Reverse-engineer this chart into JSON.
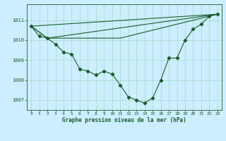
{
  "title": "Graphe pression niveau de la mer (hPa)",
  "bg_color": "#cceeff",
  "grid_color": "#aaddcc",
  "line_color": "#1a5c2a",
  "marker_color": "#1a5c2a",
  "xlim": [
    -0.5,
    23.5
  ],
  "ylim": [
    1006.5,
    1011.8
  ],
  "yticks": [
    1007,
    1008,
    1009,
    1010,
    1011
  ],
  "xticks": [
    0,
    1,
    2,
    3,
    4,
    5,
    6,
    7,
    8,
    9,
    10,
    11,
    12,
    13,
    14,
    15,
    16,
    17,
    18,
    19,
    20,
    21,
    22,
    23
  ],
  "series_main": {
    "x": [
      0,
      1,
      2,
      3,
      4,
      5,
      6,
      7,
      8,
      9,
      10,
      11,
      12,
      13,
      14,
      15,
      16,
      17,
      18,
      19,
      20,
      21,
      22,
      23
    ],
    "y": [
      1010.7,
      1010.2,
      1010.1,
      1009.8,
      1009.4,
      1009.3,
      1008.55,
      1008.45,
      1008.25,
      1008.45,
      1008.3,
      1007.75,
      1007.15,
      1007.0,
      1006.85,
      1007.1,
      1008.0,
      1009.1,
      1009.1,
      1010.0,
      1010.55,
      1010.8,
      1011.2,
      1011.3
    ]
  },
  "envelope1": {
    "x": [
      0,
      23
    ],
    "y": [
      1010.7,
      1011.3
    ]
  },
  "envelope2": {
    "x": [
      0,
      2,
      23
    ],
    "y": [
      1010.7,
      1010.1,
      1011.3
    ]
  },
  "envelope3": {
    "x": [
      0,
      2,
      11,
      23
    ],
    "y": [
      1010.7,
      1010.1,
      1010.1,
      1011.3
    ]
  },
  "figsize": [
    3.2,
    2.0
  ],
  "dpi": 100
}
